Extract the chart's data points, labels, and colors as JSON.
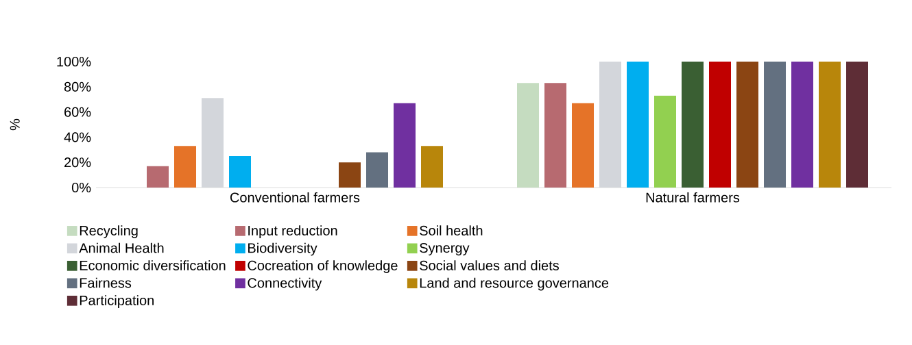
{
  "chart_data": {
    "type": "bar",
    "ylabel": "%",
    "categories": [
      "Conventional farmers",
      "Natural farmers"
    ],
    "series": [
      {
        "name": "Recycling",
        "color": "#c5dcc0",
        "values": [
          0,
          83
        ]
      },
      {
        "name": "Input reduction",
        "color": "#b76a70",
        "values": [
          17,
          83
        ]
      },
      {
        "name": "Soil health",
        "color": "#e57328",
        "values": [
          33,
          67
        ]
      },
      {
        "name": "Animal Health",
        "color": "#d3d6db",
        "values": [
          71,
          100
        ]
      },
      {
        "name": "Biodiversity",
        "color": "#00aeef",
        "values": [
          25,
          100
        ]
      },
      {
        "name": "Synergy",
        "color": "#92d050",
        "values": [
          0,
          73
        ]
      },
      {
        "name": "Economic diversification",
        "color": "#3a5f33",
        "values": [
          0,
          100
        ]
      },
      {
        "name": "Cocreation of knowledge",
        "color": "#c00000",
        "values": [
          0,
          100
        ]
      },
      {
        "name": "Social values and diets",
        "color": "#8b4513",
        "values": [
          20,
          100
        ]
      },
      {
        "name": "Fairness",
        "color": "#637080",
        "values": [
          28,
          100
        ]
      },
      {
        "name": "Connectivity",
        "color": "#7030a0",
        "values": [
          67,
          100
        ]
      },
      {
        "name": "Land and resource governance",
        "color": "#b8860b",
        "values": [
          33,
          100
        ]
      },
      {
        "name": "Participation",
        "color": "#5e2d36",
        "values": [
          0,
          100
        ]
      }
    ],
    "ylim": [
      0,
      100
    ],
    "yticks": [
      {
        "value": 0,
        "label": "0%"
      },
      {
        "value": 20,
        "label": "20%"
      },
      {
        "value": 40,
        "label": "40%"
      },
      {
        "value": 60,
        "label": "60%"
      },
      {
        "value": 80,
        "label": "80%"
      },
      {
        "value": 100,
        "label": "100%"
      }
    ],
    "legend": "bottom"
  }
}
